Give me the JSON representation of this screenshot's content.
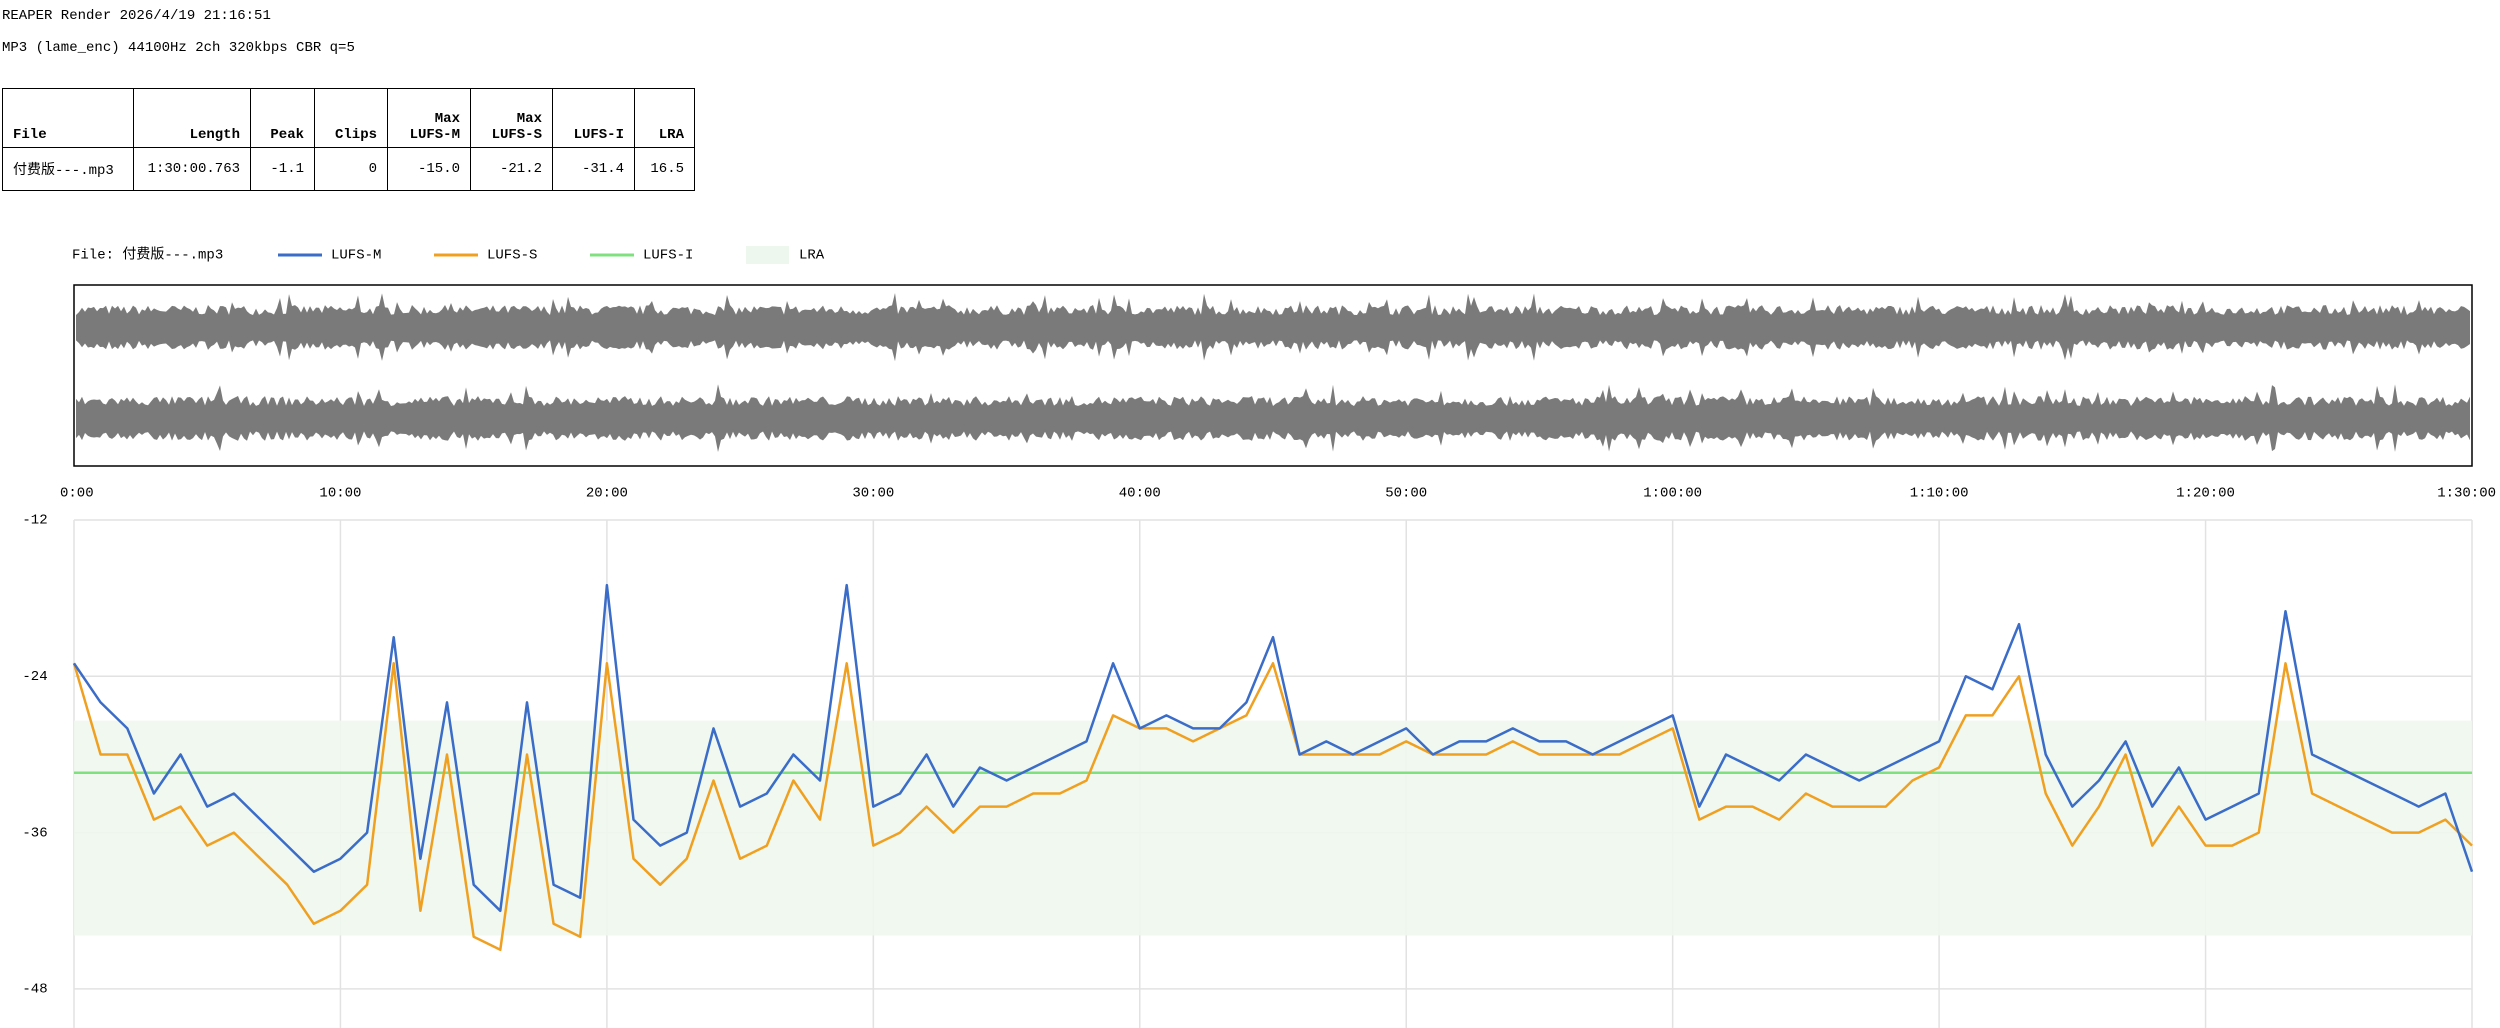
{
  "header": {
    "title": "REAPER Render 2026/4/19 21:16:51",
    "format": "MP3 (lame_enc) 44100Hz 2ch 320kbps CBR q=5"
  },
  "table": {
    "headers": [
      "File",
      "Length",
      "Peak",
      "Clips",
      "Max\nLUFS-M",
      "Max\nLUFS-S",
      "LUFS-I",
      "LRA"
    ],
    "rows": [
      [
        "付费版---.mp3",
        "1:30:00.763",
        "-1.1",
        "0",
        "-15.0",
        "-21.2",
        "-31.4",
        "16.5"
      ]
    ]
  },
  "chart_data": {
    "type": "line",
    "file_label": "File: 付费版---.mp3",
    "x": [
      0,
      1,
      2,
      3,
      4,
      5,
      6,
      7,
      8,
      9,
      10,
      11,
      12,
      13,
      14,
      15,
      16,
      17,
      18,
      19,
      20,
      21,
      22,
      23,
      24,
      25,
      26,
      27,
      28,
      29,
      30,
      31,
      32,
      33,
      34,
      35,
      36,
      37,
      38,
      39,
      40,
      41,
      42,
      43,
      44,
      45,
      46,
      47,
      48,
      49,
      50,
      51,
      52,
      53,
      54,
      55,
      56,
      57,
      58,
      59,
      60,
      61,
      62,
      63,
      64,
      65,
      66,
      67,
      68,
      69,
      70,
      71,
      72,
      73,
      74,
      75,
      76,
      77,
      78,
      79,
      80,
      81,
      82,
      83,
      84,
      85,
      86,
      87,
      88,
      89,
      90
    ],
    "xlim": [
      0,
      90
    ],
    "xticks": [
      {
        "value": 0,
        "label": "0:00"
      },
      {
        "value": 10,
        "label": "10:00"
      },
      {
        "value": 20,
        "label": "20:00"
      },
      {
        "value": 30,
        "label": "30:00"
      },
      {
        "value": 40,
        "label": "40:00"
      },
      {
        "value": 50,
        "label": "50:00"
      },
      {
        "value": 60,
        "label": "1:00:00"
      },
      {
        "value": 70,
        "label": "1:10:00"
      },
      {
        "value": 80,
        "label": "1:20:00"
      },
      {
        "value": 90,
        "label": "1:30:00"
      }
    ],
    "ylim": [
      -12,
      -51
    ],
    "yticks": [
      -12,
      -24,
      -36,
      -48
    ],
    "grid": true,
    "series": [
      {
        "name": "LUFS-M",
        "color": "#3a6cc8",
        "values": [
          -23,
          -26,
          -28,
          -33,
          -30,
          -34,
          -33,
          -35,
          -37,
          -39,
          -38,
          -36,
          -21,
          -38,
          -26,
          -40,
          -42,
          -26,
          -40,
          -41,
          -17,
          -35,
          -37,
          -36,
          -28,
          -34,
          -33,
          -30,
          -32,
          -17,
          -34,
          -33,
          -30,
          -34,
          -31,
          -32,
          -31,
          -30,
          -29,
          -23,
          -28,
          -27,
          -28,
          -28,
          -26,
          -21,
          -30,
          -29,
          -30,
          -29,
          -28,
          -30,
          -29,
          -29,
          -28,
          -29,
          -29,
          -30,
          -29,
          -28,
          -27,
          -34,
          -30,
          -31,
          -32,
          -30,
          -31,
          -32,
          -31,
          -30,
          -29,
          -24,
          -25,
          -20,
          -30,
          -34,
          -32,
          -29,
          -34,
          -31,
          -35,
          -34,
          -33,
          -19,
          -30,
          -31,
          -32,
          -33,
          -34,
          -33,
          -39
        ]
      },
      {
        "name": "LUFS-S",
        "color": "#f0a020",
        "values": [
          -23,
          -30,
          -30,
          -35,
          -34,
          -37,
          -36,
          -38,
          -40,
          -43,
          -42,
          -40,
          -23,
          -42,
          -30,
          -44,
          -45,
          -30,
          -43,
          -44,
          -23,
          -38,
          -40,
          -38,
          -32,
          -38,
          -37,
          -32,
          -35,
          -23,
          -37,
          -36,
          -34,
          -36,
          -34,
          -34,
          -33,
          -33,
          -32,
          -27,
          -28,
          -28,
          -29,
          -28,
          -27,
          -23,
          -30,
          -30,
          -30,
          -30,
          -29,
          -30,
          -30,
          -30,
          -29,
          -30,
          -30,
          -30,
          -30,
          -29,
          -28,
          -35,
          -34,
          -34,
          -35,
          -33,
          -34,
          -34,
          -34,
          -32,
          -31,
          -27,
          -27,
          -24,
          -33,
          -37,
          -34,
          -30,
          -37,
          -34,
          -37,
          -37,
          -36,
          -23,
          -33,
          -34,
          -35,
          -36,
          -36,
          -35,
          -37
        ]
      }
    ],
    "integrated": {
      "name": "LUFS-I",
      "value": -31.4,
      "color": "#80e080"
    },
    "lra": {
      "name": "LRA",
      "range": [
        -43.9,
        -27.4
      ],
      "color": "#eef7ee"
    }
  }
}
